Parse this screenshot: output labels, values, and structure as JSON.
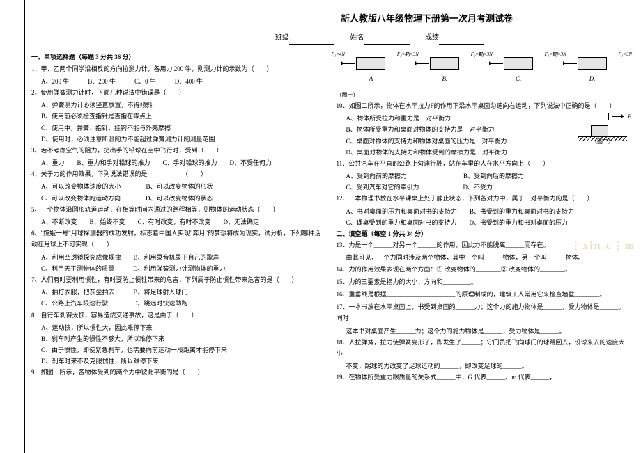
{
  "title": "新人教版八年级物理下册第一次月考测试卷",
  "fields": {
    "class": "班级",
    "name": "姓名",
    "score": "成绩"
  },
  "section1": "一、单项选择题（每题 3 分共 36 分）",
  "q1": "1、甲、乙两个同学沿相反的方向拉测力计，各用力 200 牛，则测力计的示数为（　　）",
  "q1o": "A、200 牛　　　B、200 牛　　　C、0 牛　　　D、400 牛",
  "q2": "2、使用弹簧测力计时，下面几种说法中错误是（　　）",
  "q2a": "A、弹簧测力计必须竖直放置，不得倾斜",
  "q2b": "B、使用前必须检查指针是否指在零点上",
  "q2c": "C、使用中，弹簧、指针、挂钩不能与外壳摩擦",
  "q2d": "D、使用时，必须注意所测的力不能超过弹簧测力计的测量范围",
  "q3": "3、若不考虑空气的阻力，扔出手的铅球在空中飞行时，受到（　　）",
  "q3o": "A、重力　　B、重力和手对铅球的推力　　C、手对铅球的推力　　D、不受任何力",
  "q4": "4、关于力的作用效果，下列说法错误的是　　　　　　（　　）",
  "q4a": "A、可以改变物体速度的大小　　　　B、可以改变物体的形状",
  "q4b": "C、可以改变物体的运动方向　　　　D、可以改变物体的状态",
  "q5": "5、一个物体沿圆形轨道运动，在相等时间内通过的路程相等，则物体的运动状态（　　）",
  "q5o": "A、不断改变　　B、始终不变　　C、有时改变，有时不改变　　D、无法确定",
  "q6": "6、\"嫦娥一号\"月球探测器的成功发射，标志着中国人实现\"奔月\"的梦想将成为现实，试分析，下列哪种活动在月球上不可实现（　　）",
  "q6a": "A、利用凸透镜探究成像规律　　B、利用录音机录下自己的歌声",
  "q6b": "C、利用天平测物体的质量　　　D、利用弹簧测力计测物体的重力",
  "q7": "7、人们有时要利用惯性，有时要防止惯性带来的危害，下列属于防止惯性带来危害的是（　　）",
  "q7a": "A、拍打衣服，把灰尘拍去　　　B、将足球射入球门",
  "q7b": "C、公路上汽车限速行驶　　　　D、跳远时快速助跑",
  "q8": "8．自行车刹得太快，容易造成交通事故，这是由于（　　）",
  "q8a": "A、运动快，所以惯性大，因此难停下来",
  "q8b": "B、刹车时产生的惯性不够大，所以难停下来",
  "q8c": "C、由于惯性，即使紧急刹车，也需要向前运动一段距离才能停下来",
  "q8d": "D、刹车时来不及克服惯性，所以难停下来",
  "q9": "9．如图一所示，各物体受到的两个力中彼此平衡的是（　　）",
  "fig1_cap": "（图一）",
  "fA": {
    "l": "F₁=4N",
    "r": "F₂=4N",
    "label": "A"
  },
  "fB": {
    "l": "F₁=3N",
    "r": "F₂=4N",
    "label": "B."
  },
  "fC": {
    "l": "F₂=3N",
    "r": "F₁=3N",
    "label": "C."
  },
  "fD": {
    "l": "F₂=3N",
    "r": "F₁=3N",
    "label": "D."
  },
  "q10": "10．如图二所示，物体在水平拉力F的作用下沿水平桌面匀速向右运动，下列说法中正确的是（　　）",
  "q10a": "A、物体所受拉力和重力是一对平衡力",
  "q10b": "B、物体所受重力和桌面对物体的支持力是一对平衡力",
  "q10c": "C、桌面对物体的支持力和物体对桌面的压力是一对平衡力",
  "q10d": "D、桌面对物体的支持力和物体受到的摩擦力是一对平衡力",
  "fig2_cap": "（图二）",
  "fig2_f": "F",
  "q11": "11．公共汽车在平直的公路上匀速行驶，站在车里的人在水平方向上（　　）",
  "q11a": "A、受到向前的摩擦力　　　　　　　　　B、受到向后的摩擦力",
  "q11b": "C、受到汽车对它的牵引力　　　　　　　D、不受力",
  "q12": "12．一本物理书放在水平课桌上处于静止状态，下列各对力中，属于一对平衡力的是（　　）",
  "q12a": "A、书对桌面的压力和桌面对书的支持力　　B、书受到的重力和桌面对书的支持力",
  "q12b": "C、课桌受到的重力和桌面对书的支持力　　D、书受到的重力和书对桌面的压力",
  "section2": "二、填空题（每空 1 分共 34 分）",
  "q13a": "13．力是一个______对另一个______的作用，因此力不能脱离______而存在。",
  "q13b": "由此可见，一个力同时涉及两个物体，其中一个叫______物体，另一个叫______物体。",
  "q14": "14．力的作用效果表现在两个方面：① 改变物体的________② 改变物体的________。",
  "q15": "15．力的三要素是指力的大小、方向和_________。",
  "q16": "16．重垂线是根据______________________的原理制成的，建筑工人常用它来检查墙壁________。",
  "q17a": "17．一本书放在水平桌面上，书受到桌面的______力；这个力的施力物体是______，受力物体是______。同时",
  "q17b": "这本书对桌面产生______力；这个力的施力物体是______，受力物体是______。",
  "q18a": "18．人拉弹簧，拉力使弹簧变形了，即发生了______；守门员把飞向球门的球踢回去，设球来去的速度大小",
  "q18b": "不变，踢球的力改变了足球运动的______，即改变足球的______。",
  "q19": "19．在物体所受重力跟质量的关系式______中，G 代表______、m 代表______，",
  "watermark": "⋮xin.c⋮m"
}
